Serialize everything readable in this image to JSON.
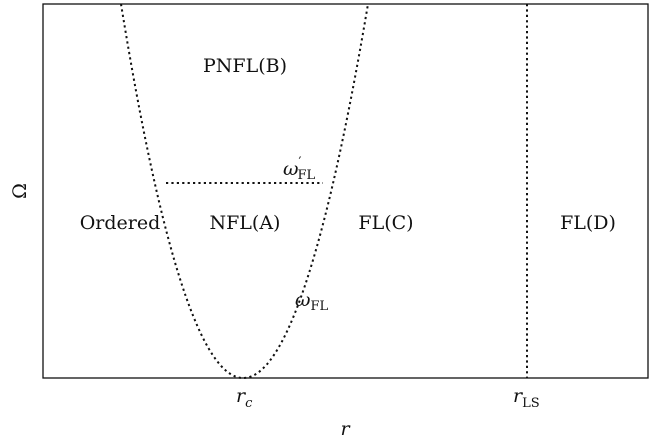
{
  "diagram": {
    "regions": {
      "pnfl_b": "PNFL(B)",
      "ordered": "Ordered",
      "nfl_a": "NFL(A)",
      "fl_c": "FL(C)",
      "fl_d": "FL(D)"
    },
    "curves": {
      "omega_fl_prime": {
        "symbol": "ω",
        "prime": "′",
        "subscript": "FL"
      },
      "omega_fl": {
        "symbol": "ω",
        "subscript": "FL"
      }
    },
    "axes": {
      "y_label": "Ω",
      "x_label": "r",
      "ticks": {
        "rc": {
          "main": "r",
          "sub": "c"
        },
        "rls": {
          "main": "r",
          "sub": "LS"
        }
      }
    }
  }
}
